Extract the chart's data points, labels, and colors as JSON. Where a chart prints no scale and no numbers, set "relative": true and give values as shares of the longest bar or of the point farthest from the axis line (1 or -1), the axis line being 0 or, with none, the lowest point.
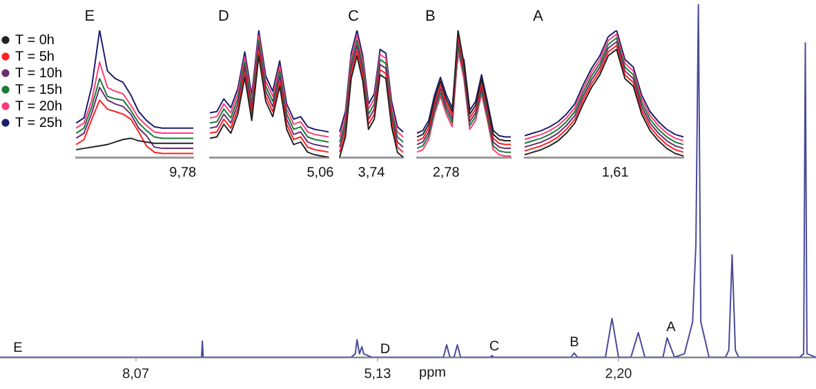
{
  "chart_data": [
    {
      "type": "line",
      "title": "E",
      "relative": true,
      "legend": "top left",
      "annotations": [
        "9,78"
      ],
      "categories": [
        null,
        null,
        null,
        null,
        null,
        null,
        null,
        null,
        null,
        null,
        null,
        null,
        null,
        null,
        null,
        null
      ],
      "series": [
        {
          "name": "T = 0h",
          "color": "#222222",
          "values": [
            0.06,
            0.07,
            0.08,
            0.09,
            0.1,
            0.12,
            0.14,
            0.15,
            0.13,
            0.12,
            0.11,
            0.11,
            0.11,
            0.11,
            0.11,
            0.11
          ]
        },
        {
          "name": "T = 5h",
          "color": "#ff2020",
          "values": [
            0.1,
            0.14,
            0.3,
            0.45,
            0.38,
            0.36,
            0.34,
            0.3,
            0.2,
            0.09,
            0.04,
            0.03,
            0.03,
            0.03,
            0.03,
            0.03
          ]
        },
        {
          "name": "T = 10h",
          "color": "#6a2c70",
          "values": [
            0.15,
            0.19,
            0.35,
            0.55,
            0.45,
            0.42,
            0.4,
            0.34,
            0.23,
            0.17,
            0.08,
            0.07,
            0.07,
            0.07,
            0.07,
            0.07
          ]
        },
        {
          "name": "T = 15h",
          "color": "#1a7a3a",
          "values": [
            0.19,
            0.23,
            0.4,
            0.62,
            0.48,
            0.46,
            0.45,
            0.37,
            0.27,
            0.21,
            0.16,
            0.15,
            0.15,
            0.15,
            0.15,
            0.15
          ]
        },
        {
          "name": "T = 20h",
          "color": "#ff3c78",
          "values": [
            0.23,
            0.27,
            0.45,
            0.75,
            0.55,
            0.52,
            0.5,
            0.41,
            0.31,
            0.25,
            0.2,
            0.19,
            0.19,
            0.19,
            0.19,
            0.19
          ]
        },
        {
          "name": "T = 25h",
          "color": "#1c1c6e",
          "values": [
            0.27,
            0.31,
            0.56,
            1,
            0.68,
            0.62,
            0.59,
            0.49,
            0.36,
            0.29,
            0.24,
            0.23,
            0.23,
            0.23,
            0.23,
            0.23
          ]
        }
      ]
    },
    {
      "type": "line",
      "title": "D",
      "relative": true,
      "annotations": [
        "5,06"
      ],
      "categories": [
        null,
        null,
        null,
        null,
        null,
        null,
        null,
        null,
        null,
        null,
        null,
        null,
        null,
        null,
        null,
        null,
        null,
        null
      ],
      "series": [
        {
          "color": "#222222",
          "values": [
            0.15,
            0.16,
            0.26,
            0.19,
            0.34,
            0.63,
            0.29,
            0.8,
            0.44,
            0.32,
            0.56,
            0.22,
            0.1,
            0.12,
            0.04,
            0.02,
            0.01,
            0
          ]
        },
        {
          "color": "#ff2020",
          "values": [
            0.19,
            0.2,
            0.3,
            0.23,
            0.38,
            0.67,
            0.33,
            0.84,
            0.48,
            0.36,
            0.6,
            0.26,
            0.14,
            0.16,
            0.08,
            0.06,
            0.05,
            0.04
          ]
        },
        {
          "color": "#6a2c70",
          "values": [
            0.23,
            0.24,
            0.34,
            0.27,
            0.42,
            0.71,
            0.37,
            0.88,
            0.52,
            0.4,
            0.64,
            0.3,
            0.18,
            0.2,
            0.12,
            0.1,
            0.09,
            0.08
          ]
        },
        {
          "color": "#1a7a3a",
          "values": [
            0.27,
            0.28,
            0.38,
            0.31,
            0.46,
            0.75,
            0.41,
            0.92,
            0.56,
            0.44,
            0.68,
            0.34,
            0.22,
            0.24,
            0.16,
            0.14,
            0.13,
            0.12
          ]
        },
        {
          "color": "#ff3c78",
          "values": [
            0.31,
            0.32,
            0.42,
            0.35,
            0.5,
            0.79,
            0.45,
            0.96,
            0.6,
            0.48,
            0.72,
            0.38,
            0.26,
            0.28,
            0.2,
            0.18,
            0.17,
            0.16
          ]
        },
        {
          "color": "#1c1c6e",
          "values": [
            0.35,
            0.36,
            0.46,
            0.39,
            0.54,
            0.83,
            0.49,
            1,
            0.64,
            0.52,
            0.76,
            0.42,
            0.3,
            0.32,
            0.24,
            0.22,
            0.21,
            0.2
          ]
        }
      ]
    },
    {
      "type": "line",
      "title": "C",
      "relative": true,
      "annotations": [
        "3,74"
      ],
      "categories": [
        null,
        null,
        null,
        null,
        null,
        null,
        null,
        null,
        null,
        null,
        null,
        null
      ],
      "series": [
        {
          "color": "#222222",
          "values": [
            0,
            0.16,
            0.62,
            0.8,
            0.6,
            0.22,
            0.3,
            0.65,
            0.62,
            0.24,
            0.04,
            0
          ]
        },
        {
          "color": "#ff2020",
          "values": [
            0.04,
            0.2,
            0.66,
            0.84,
            0.64,
            0.26,
            0.34,
            0.69,
            0.66,
            0.28,
            0.08,
            0.04
          ]
        },
        {
          "color": "#6a2c70",
          "values": [
            0.08,
            0.24,
            0.7,
            0.88,
            0.68,
            0.3,
            0.38,
            0.73,
            0.7,
            0.32,
            0.12,
            0.08
          ]
        },
        {
          "color": "#1a7a3a",
          "values": [
            0.12,
            0.28,
            0.74,
            0.92,
            0.72,
            0.34,
            0.42,
            0.77,
            0.74,
            0.36,
            0.16,
            0.12
          ]
        },
        {
          "color": "#ff3c78",
          "values": [
            0.16,
            0.32,
            0.78,
            0.96,
            0.76,
            0.38,
            0.46,
            0.81,
            0.78,
            0.4,
            0.2,
            0.16
          ]
        },
        {
          "color": "#1c1c6e",
          "values": [
            0.2,
            0.36,
            0.82,
            1,
            0.8,
            0.42,
            0.5,
            0.85,
            0.82,
            0.44,
            0.24,
            0.2
          ]
        }
      ]
    },
    {
      "type": "line",
      "title": "B",
      "relative": true,
      "annotations": [
        "2,78"
      ],
      "categories": [
        null,
        null,
        null,
        null,
        null,
        null,
        null,
        null,
        null,
        null,
        null,
        null,
        null,
        null,
        null,
        null,
        null
      ],
      "series": [
        {
          "color": "#222222",
          "values": [
            0.16,
            0.18,
            0.26,
            0.46,
            0.6,
            0.46,
            0.36,
            1,
            0.74,
            0.34,
            0.41,
            0.62,
            0.41,
            0.18,
            0.14,
            0.13,
            0.13
          ]
        },
        {
          "color": "#ff2020",
          "values": [
            0.13,
            0.15,
            0.23,
            0.43,
            0.57,
            0.43,
            0.33,
            0.96,
            0.71,
            0.31,
            0.38,
            0.59,
            0.38,
            0.15,
            0.11,
            0.1,
            0.1
          ]
        },
        {
          "color": "#6a2c70",
          "values": [
            0.1,
            0.12,
            0.2,
            0.4,
            0.54,
            0.4,
            0.3,
            0.92,
            0.68,
            0.28,
            0.35,
            0.56,
            0.35,
            0.12,
            0.08,
            0.07,
            0.07
          ]
        },
        {
          "color": "#1a7a3a",
          "values": [
            0.07,
            0.09,
            0.17,
            0.37,
            0.51,
            0.37,
            0.27,
            0.88,
            0.65,
            0.25,
            0.32,
            0.53,
            0.32,
            0.09,
            0.05,
            0.04,
            0.04
          ]
        },
        {
          "color": "#ff3c78",
          "values": [
            0.04,
            0.06,
            0.14,
            0.34,
            0.48,
            0.34,
            0.24,
            0.84,
            0.62,
            0.22,
            0.29,
            0.5,
            0.29,
            0.06,
            0.02,
            0.01,
            0.01
          ]
        },
        {
          "color": "#1c1c6e",
          "values": [
            0.19,
            0.21,
            0.29,
            0.49,
            0.63,
            0.49,
            0.39,
            0.8,
            0.77,
            0.37,
            0.44,
            0.65,
            0.44,
            0.21,
            0.17,
            0.16,
            0.16
          ]
        }
      ]
    },
    {
      "type": "line",
      "title": "A",
      "relative": true,
      "annotations": [
        "1,61"
      ],
      "categories": [
        null,
        null,
        null,
        null,
        null,
        null,
        null,
        null,
        null,
        null,
        null,
        null,
        null,
        null,
        null,
        null,
        null,
        null,
        null,
        null
      ],
      "series": [
        {
          "color": "#222222",
          "values": [
            0.02,
            0.04,
            0.06,
            0.09,
            0.13,
            0.19,
            0.27,
            0.42,
            0.55,
            0.65,
            0.8,
            0.85,
            0.62,
            0.56,
            0.34,
            0.21,
            0.13,
            0.07,
            0.03,
            0.01
          ]
        },
        {
          "color": "#ff2020",
          "values": [
            0.05,
            0.07,
            0.09,
            0.12,
            0.16,
            0.22,
            0.3,
            0.45,
            0.58,
            0.68,
            0.83,
            0.88,
            0.65,
            0.59,
            0.37,
            0.24,
            0.16,
            0.1,
            0.06,
            0.04
          ]
        },
        {
          "color": "#6a2c70",
          "values": [
            0.08,
            0.1,
            0.12,
            0.15,
            0.19,
            0.25,
            0.33,
            0.48,
            0.61,
            0.71,
            0.86,
            0.91,
            0.68,
            0.62,
            0.4,
            0.27,
            0.19,
            0.13,
            0.09,
            0.07
          ]
        },
        {
          "color": "#1a7a3a",
          "values": [
            0.11,
            0.13,
            0.15,
            0.18,
            0.22,
            0.28,
            0.36,
            0.51,
            0.64,
            0.74,
            0.89,
            0.94,
            0.71,
            0.65,
            0.43,
            0.3,
            0.22,
            0.16,
            0.12,
            0.1
          ]
        },
        {
          "color": "#ff3c78",
          "values": [
            0.14,
            0.16,
            0.18,
            0.21,
            0.25,
            0.31,
            0.39,
            0.54,
            0.67,
            0.77,
            0.92,
            0.97,
            0.74,
            0.68,
            0.46,
            0.33,
            0.25,
            0.19,
            0.15,
            0.13
          ]
        },
        {
          "color": "#1c1c6e",
          "values": [
            0.17,
            0.19,
            0.21,
            0.24,
            0.28,
            0.34,
            0.42,
            0.57,
            0.7,
            0.8,
            0.95,
            1,
            0.77,
            0.71,
            0.49,
            0.36,
            0.28,
            0.22,
            0.18,
            0.16
          ]
        }
      ]
    },
    {
      "type": "line",
      "relative": true,
      "xlabel": "ppm",
      "xlim": [
        9.72,
        -0.2
      ],
      "xticks": [
        {
          "value": 8.07,
          "label": "8,07"
        },
        {
          "value": 5.13,
          "label": "5,13"
        },
        {
          "value": 2.2,
          "label": "2,20"
        }
      ],
      "x": [
        9.72,
        7.3,
        7.27,
        7.26,
        7.25,
        5.45,
        5.4,
        5.38,
        5.35,
        5.32,
        5.3,
        5.2,
        4.33,
        4.29,
        4.25,
        4.2,
        4.16,
        4.12,
        3.76,
        3.74,
        3.72,
        2.78,
        2.74,
        2.7,
        2.36,
        2.28,
        2.2,
        2.05,
        1.96,
        1.88,
        1.66,
        1.61,
        1.52,
        1.4,
        1.3,
        1.26,
        1.23,
        1.2,
        1.1,
        0.9,
        0.86,
        0.82,
        0.78,
        0.74,
        0,
        -0.05,
        -0.07,
        -0.09,
        -0.2
      ],
      "series": [
        {
          "color": "#4a4a9a",
          "values": [
            0,
            0,
            0,
            0.046,
            0,
            0,
            0.01,
            0.05,
            0.01,
            0.03,
            0.01,
            0,
            0,
            0.035,
            0,
            0,
            0.035,
            0,
            0,
            0.005,
            0,
            0,
            0.012,
            0,
            0,
            0.11,
            0,
            0,
            0.07,
            0,
            0,
            0.055,
            0,
            0.01,
            0.1,
            0.32,
            1,
            0.1,
            0,
            0,
            0.02,
            0.29,
            0.02,
            0,
            0,
            0.01,
            0.89,
            0.01,
            0
          ]
        }
      ],
      "annotations": [
        "E",
        "D",
        "C",
        "B",
        "A"
      ]
    }
  ]
}
